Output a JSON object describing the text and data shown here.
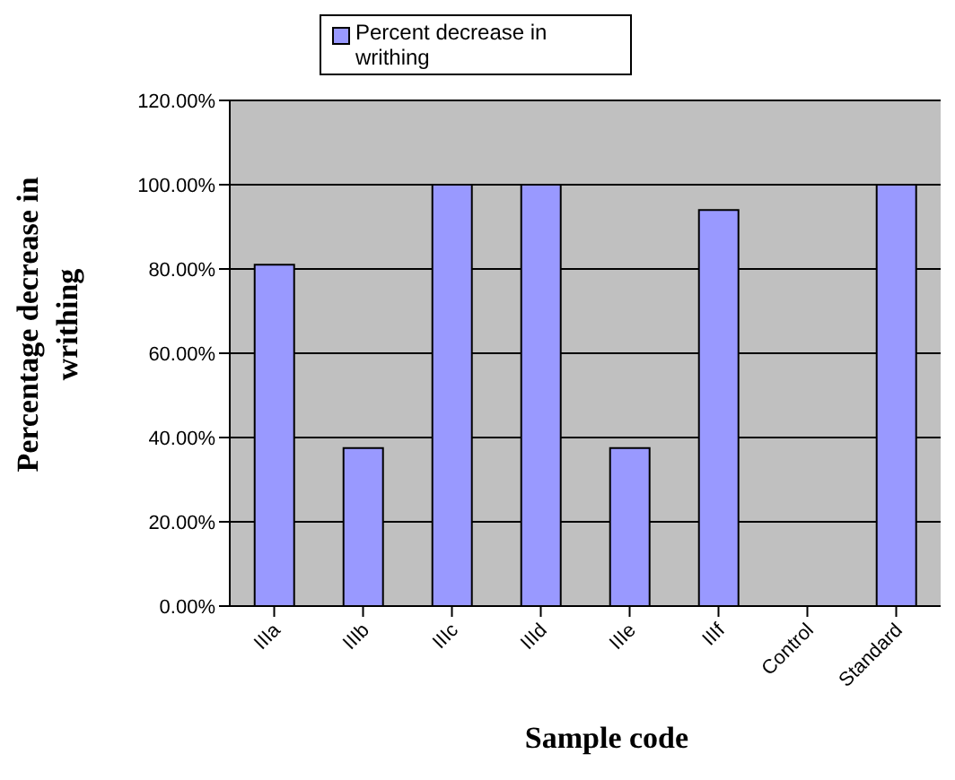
{
  "chart_data": {
    "type": "bar",
    "xlabel": "Sample code",
    "ylabel": "Percentage decrease in writhing",
    "categories": [
      "IIIa",
      "IIIb",
      "IIIc",
      "IIId",
      "IIIe",
      "IIIf",
      "Control",
      "Standard"
    ],
    "series": [
      {
        "name": "Percent decrease in writhing",
        "color": "#9999ff",
        "values": [
          81,
          37.5,
          100,
          100,
          37.5,
          94,
          0,
          100
        ]
      }
    ],
    "ylim": [
      0,
      120
    ],
    "yticks": [
      {
        "value": 0,
        "label": "0.00%"
      },
      {
        "value": 20,
        "label": "20.00%"
      },
      {
        "value": 40,
        "label": "40.00%"
      },
      {
        "value": 60,
        "label": "60.00%"
      },
      {
        "value": 80,
        "label": "80.00%"
      },
      {
        "value": 100,
        "label": "100.00%"
      },
      {
        "value": 120,
        "label": "120.00%"
      }
    ],
    "grid": "y",
    "legend": "top"
  }
}
